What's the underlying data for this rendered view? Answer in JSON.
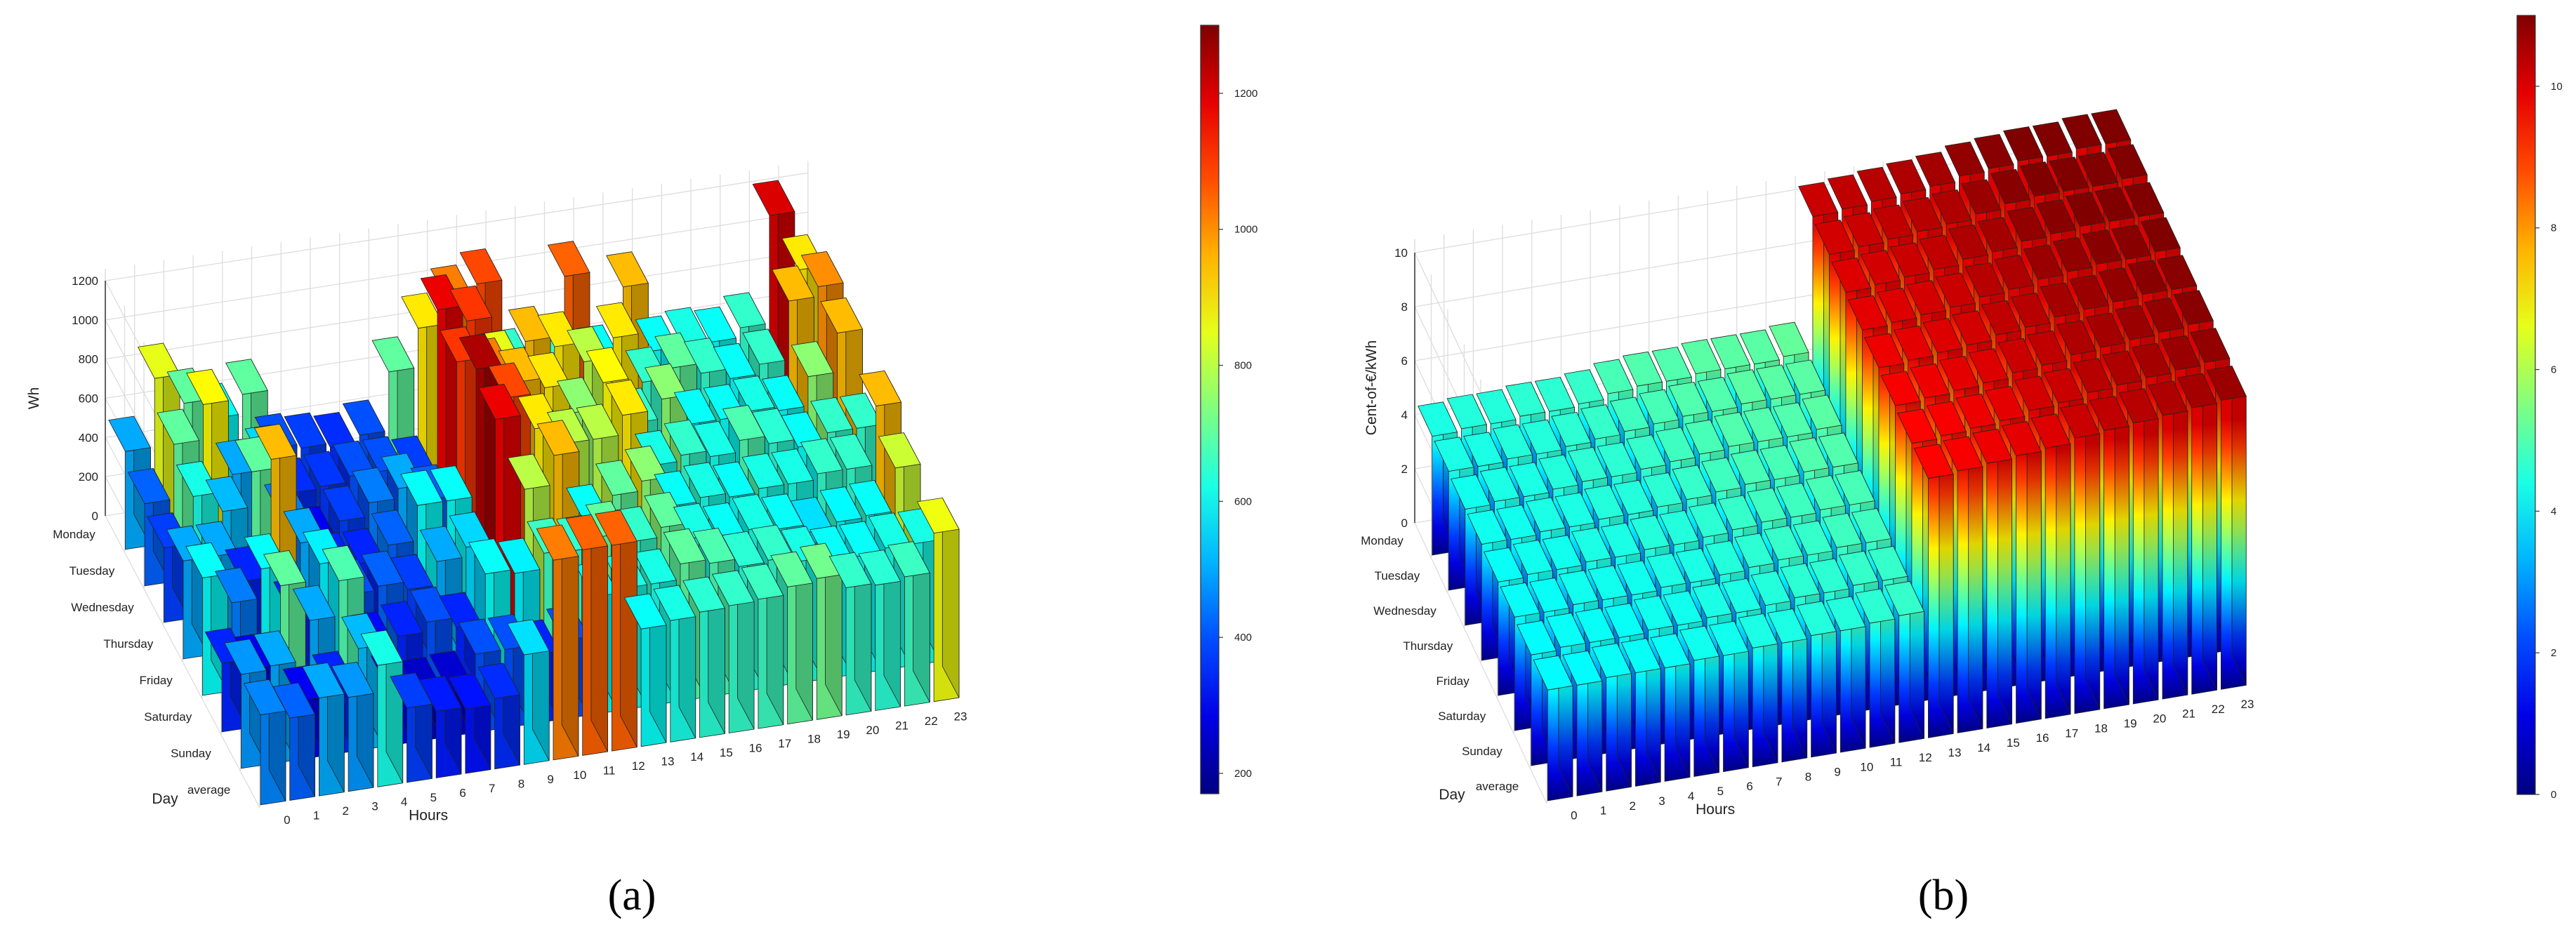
{
  "chart_data": [
    {
      "type": "bar3d",
      "panel_label": "(a)",
      "zlabel": "Wh",
      "xlabel": "Hours",
      "ylabel": "Day",
      "x": [
        "0",
        "1",
        "2",
        "3",
        "4",
        "5",
        "6",
        "7",
        "8",
        "9",
        "10",
        "11",
        "12",
        "13",
        "14",
        "15",
        "16",
        "17",
        "18",
        "19",
        "20",
        "21",
        "22",
        "23"
      ],
      "y": [
        "Monday",
        "Tuesday",
        "Wednesday",
        "Thursday",
        "Friday",
        "Saturday",
        "Sunday",
        "average"
      ],
      "zlim": [
        0,
        1200
      ],
      "zticks": [
        "0",
        "200",
        "400",
        "600",
        "800",
        "1000",
        "1200"
      ],
      "colorbar": {
        "min": 170,
        "max": 1300,
        "ticks": [
          "200",
          "400",
          "600",
          "800",
          "1000",
          "1200"
        ]
      },
      "grid": true,
      "values": [
        [
          500,
          850,
          700,
          600,
          700,
          400,
          380,
          360,
          400,
          700,
          900,
          1020,
          1080,
          650,
          650,
          1050,
          600,
          950,
          600,
          620,
          600,
          650,
          1200,
          900
        ],
        [
          420,
          700,
          880,
          500,
          550,
          360,
          370,
          400,
          400,
          380,
          1180,
          1100,
          850,
          950,
          900,
          800,
          900,
          650,
          700,
          650,
          600,
          650,
          950,
          1000
        ],
        [
          380,
          620,
          520,
          700,
          450,
          300,
          380,
          450,
          500,
          420,
          1100,
          1020,
          950,
          900,
          750,
          880,
          650,
          750,
          600,
          600,
          620,
          600,
          750,
          950
        ],
        [
          500,
          500,
          350,
          950,
          500,
          350,
          350,
          420,
          600,
          600,
          1250,
          1080,
          900,
          800,
          800,
          900,
          620,
          650,
          620,
          680,
          640,
          600,
          650,
          650
        ],
        [
          600,
          450,
          600,
          350,
          580,
          400,
          420,
          380,
          500,
          550,
          1180,
          800,
          950,
          600,
          700,
          750,
          600,
          620,
          600,
          620,
          620,
          650,
          650,
          950
        ],
        [
          350,
          300,
          700,
          500,
          680,
          320,
          350,
          400,
          350,
          600,
          580,
          660,
          650,
          700,
          650,
          700,
          620,
          600,
          620,
          600,
          560,
          590,
          600,
          820
        ],
        [
          480,
          500,
          300,
          350,
          520,
          300,
          250,
          260,
          400,
          400,
          350,
          400,
          600,
          620,
          620,
          700,
          680,
          640,
          650,
          620,
          600,
          600,
          620,
          620
        ],
        [
          460,
          420,
          500,
          480,
          620,
          380,
          340,
          330,
          360,
          560,
          1020,
          1050,
          1050,
          600,
          620,
          640,
          650,
          660,
          700,
          720,
          650,
          640,
          660,
          860
        ]
      ]
    },
    {
      "type": "bar3d",
      "panel_label": "(b)",
      "zlabel": "Cent-of-€/kWh",
      "xlabel": "Hours",
      "ylabel": "Day",
      "x": [
        "0",
        "1",
        "2",
        "3",
        "4",
        "5",
        "6",
        "7",
        "8",
        "9",
        "10",
        "11",
        "12",
        "13",
        "14",
        "15",
        "16",
        "17",
        "18",
        "19",
        "20",
        "21",
        "22",
        "23"
      ],
      "y": [
        "Monday",
        "Tuesday",
        "Wednesday",
        "Thursday",
        "Friday",
        "Saturday",
        "Sunday",
        "average"
      ],
      "zlim": [
        0,
        10
      ],
      "zticks": [
        "0",
        "2",
        "4",
        "6",
        "8",
        "10"
      ],
      "colorbar": {
        "min": 0,
        "max": 11,
        "ticks": [
          "0",
          "2",
          "4",
          "6",
          "8",
          "10"
        ]
      },
      "grid": true,
      "values": [
        [
          4.4,
          4.5,
          4.5,
          4.6,
          4.6,
          4.7,
          4.9,
          5.0,
          5.0,
          5.1,
          5.1,
          5.1,
          5.2,
          10.2,
          10.3,
          10.4,
          10.5,
          10.6,
          10.8,
          10.9,
          11.0,
          11.0,
          11.1,
          11.1
        ],
        [
          4.4,
          4.4,
          4.5,
          4.5,
          4.6,
          4.7,
          4.8,
          4.9,
          5.0,
          5.0,
          5.1,
          5.1,
          5.1,
          10.1,
          10.2,
          10.3,
          10.4,
          10.5,
          10.7,
          10.9,
          11.0,
          11.0,
          11.0,
          11.1
        ],
        [
          4.3,
          4.4,
          4.4,
          4.5,
          4.6,
          4.6,
          4.7,
          4.8,
          4.9,
          5.0,
          5.0,
          5.0,
          5.1,
          10.0,
          10.1,
          10.2,
          10.3,
          10.5,
          10.6,
          10.8,
          10.9,
          11.0,
          11.0,
          11.0
        ],
        [
          4.3,
          4.3,
          4.4,
          4.4,
          4.5,
          4.5,
          4.6,
          4.7,
          4.8,
          4.9,
          4.9,
          5.0,
          5.0,
          9.9,
          10.0,
          10.1,
          10.2,
          10.4,
          10.5,
          10.7,
          10.8,
          10.9,
          10.9,
          11.0
        ],
        [
          4.2,
          4.3,
          4.3,
          4.4,
          4.4,
          4.5,
          4.5,
          4.6,
          4.7,
          4.8,
          4.8,
          4.9,
          4.9,
          9.8,
          9.9,
          10.0,
          10.1,
          10.3,
          10.4,
          10.6,
          10.7,
          10.8,
          10.9,
          10.9
        ],
        [
          4.2,
          4.2,
          4.3,
          4.3,
          4.3,
          4.4,
          4.4,
          4.5,
          4.6,
          4.7,
          4.7,
          4.8,
          4.8,
          9.7,
          9.8,
          9.9,
          10.0,
          10.2,
          10.3,
          10.5,
          10.6,
          10.7,
          10.8,
          10.9
        ],
        [
          4.1,
          4.2,
          4.2,
          4.2,
          4.3,
          4.3,
          4.4,
          4.4,
          4.5,
          4.6,
          4.6,
          4.7,
          4.7,
          9.6,
          9.7,
          9.8,
          9.9,
          10.1,
          10.2,
          10.4,
          10.5,
          10.6,
          10.7,
          10.8
        ],
        [
          4.1,
          4.1,
          4.2,
          4.2,
          4.2,
          4.3,
          4.3,
          4.4,
          4.4,
          4.5,
          4.5,
          4.6,
          4.7,
          9.6,
          9.7,
          9.8,
          9.9,
          10.0,
          10.2,
          10.3,
          10.4,
          10.5,
          10.6,
          10.7
        ]
      ]
    }
  ]
}
